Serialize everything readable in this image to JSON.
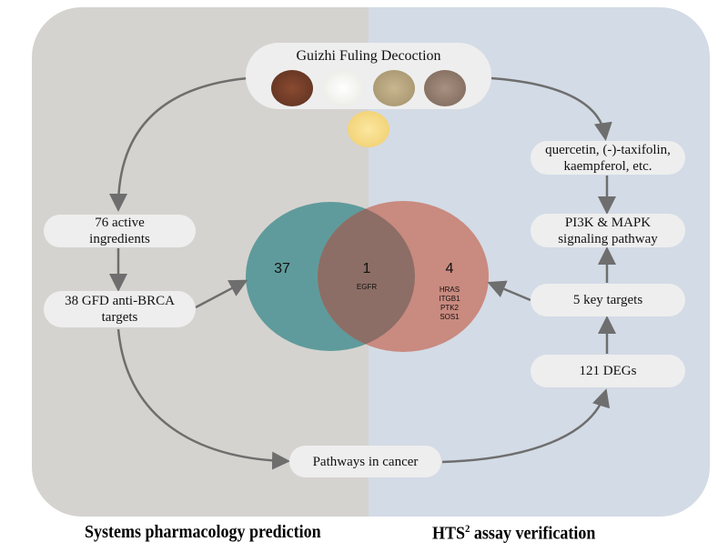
{
  "top": {
    "title": "Guizhi Fuling Decoction",
    "herbs": [
      "herb-1",
      "herb-2",
      "herb-3",
      "herb-4",
      "herb-5"
    ]
  },
  "left": {
    "ingredients": "76 active ingredients",
    "targets": "38 GFD anti-BRCA targets"
  },
  "right": {
    "compounds": "quercetin, (-)-taxifolin, kaempferol, etc.",
    "pathway": "PI3K & MAPK signaling pathway",
    "key_targets": "5 key targets",
    "degs": "121 DEGs"
  },
  "bottom": {
    "pathways": "Pathways in cancer"
  },
  "venn": {
    "left_count": "37",
    "overlap_count": "1",
    "overlap_gene": "EGFR",
    "right_count": "4",
    "right_genes": [
      "HRAS",
      "ITGB1",
      "PTK2",
      "SOS1"
    ]
  },
  "footer": {
    "left": "Systems pharmacology prediction",
    "right_prefix": "HTS",
    "right_sup": "2",
    "right_suffix": " assay verification"
  },
  "colors": {
    "left_panel": "#d5d3cf",
    "right_panel": "#d3dbe6",
    "venn_left": "#5f9b9c",
    "venn_right": "#c98a7f",
    "venn_overlap": "#8c6e66",
    "arrow": "#6e6e6e"
  }
}
